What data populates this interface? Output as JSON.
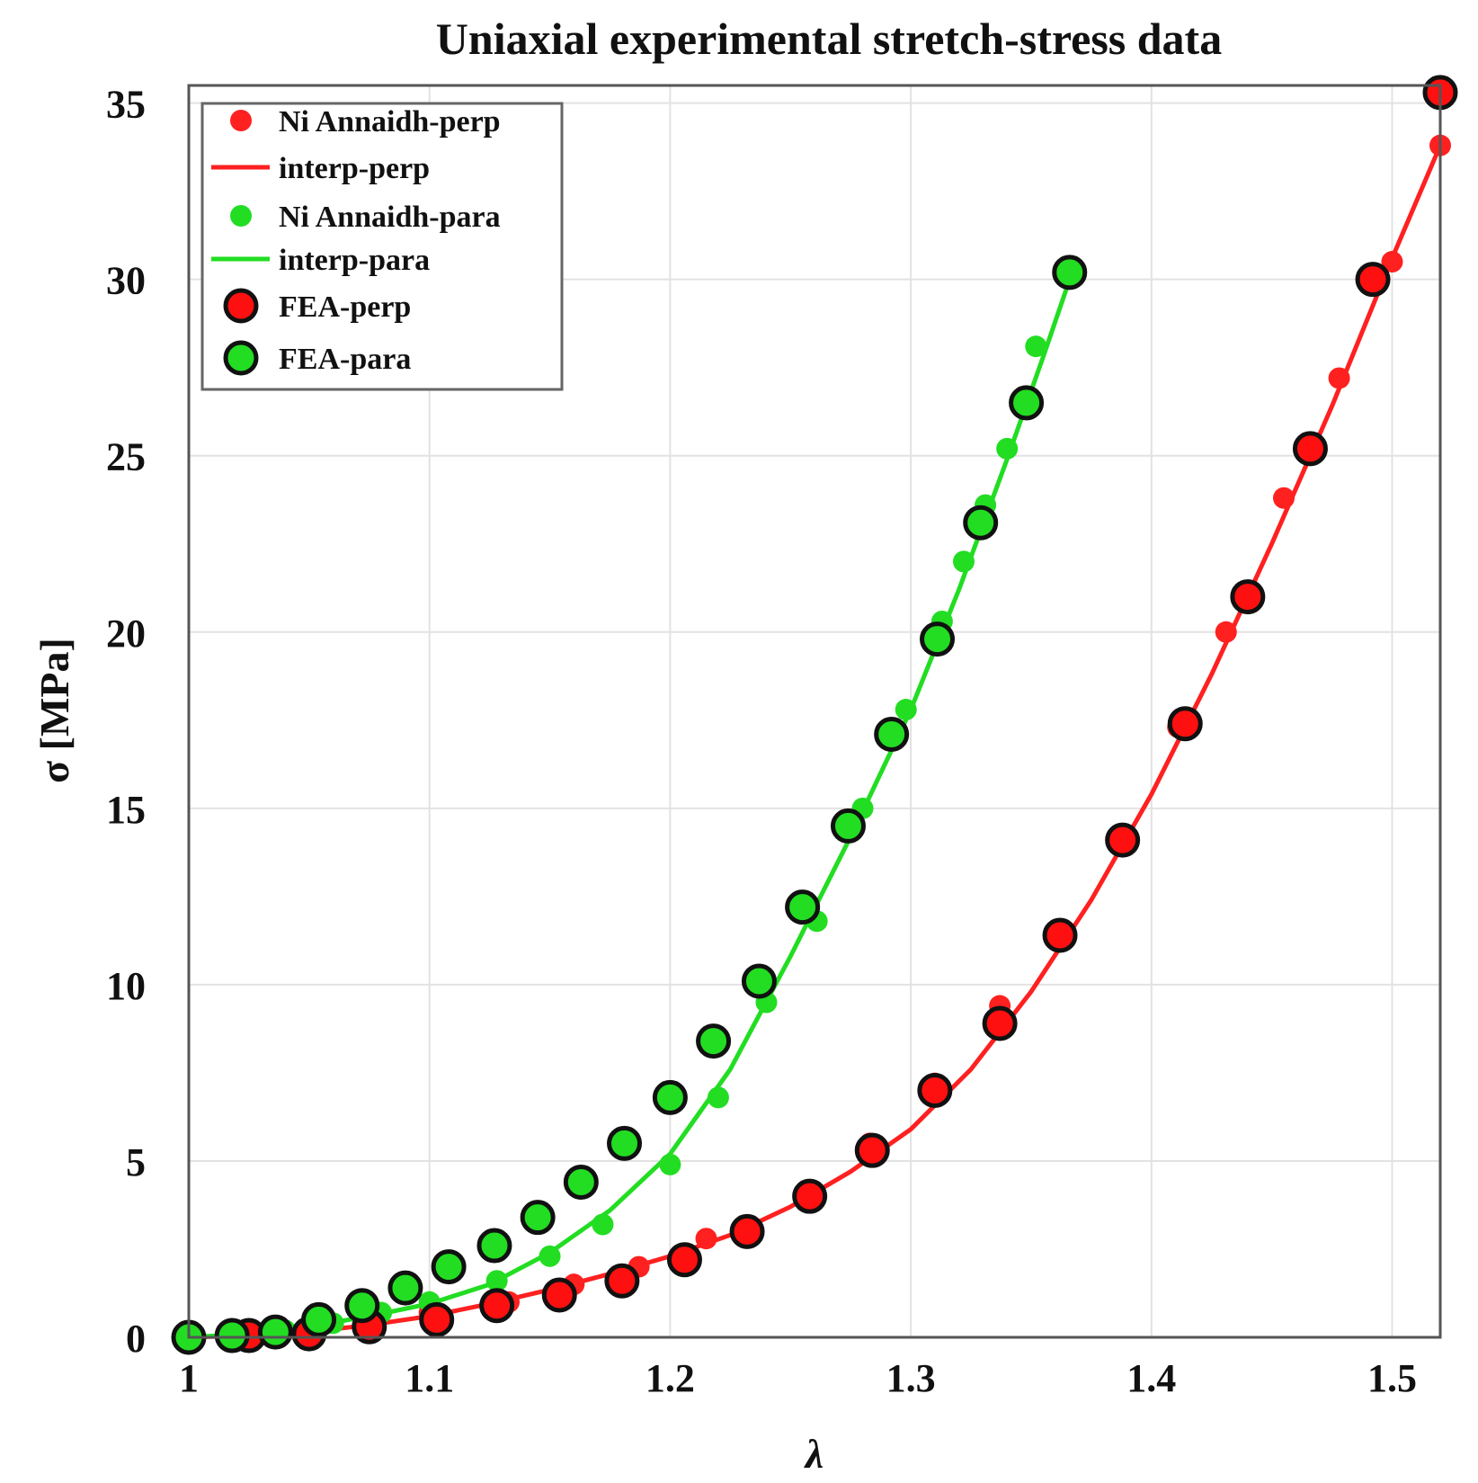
{
  "chart_data": {
    "type": "scatter",
    "title": "Uniaxial experimental stretch-stress data",
    "xlabel": "λ",
    "ylabel": "σ [MPa]",
    "xlim": [
      1.0,
      1.52
    ],
    "ylim": [
      0,
      35.5
    ],
    "xticks": [
      1,
      1.1,
      1.2,
      1.3,
      1.4,
      1.5
    ],
    "xtick_labels": [
      "1",
      "1.1",
      "1.2",
      "1.3",
      "1.4",
      "1.5"
    ],
    "yticks": [
      0,
      5,
      10,
      15,
      20,
      25,
      30,
      35
    ],
    "ytick_labels": [
      "0",
      "5",
      "10",
      "15",
      "20",
      "25",
      "30",
      "35"
    ],
    "grid": true,
    "legend_position": "top-left",
    "series": [
      {
        "name": "Ni Annaidh-perp",
        "kind": "points",
        "color": "#ff2020",
        "x": [
          1.0,
          1.025,
          1.05,
          1.075,
          1.1,
          1.133,
          1.16,
          1.187,
          1.215,
          1.258,
          1.283,
          1.31,
          1.337,
          1.364,
          1.386,
          1.411,
          1.431,
          1.455,
          1.478,
          1.5,
          1.52
        ],
        "y": [
          0,
          0.1,
          0.2,
          0.4,
          0.7,
          1.0,
          1.5,
          2.0,
          2.8,
          4.0,
          5.5,
          7.2,
          9.4,
          11.5,
          14.2,
          17.3,
          20.0,
          23.8,
          27.2,
          30.5,
          33.8
        ]
      },
      {
        "name": "interp-perp",
        "kind": "line",
        "color": "#ff2020",
        "x": [
          1.0,
          1.025,
          1.05,
          1.075,
          1.1,
          1.125,
          1.15,
          1.175,
          1.2,
          1.225,
          1.25,
          1.275,
          1.3,
          1.325,
          1.35,
          1.375,
          1.4,
          1.425,
          1.45,
          1.475,
          1.5,
          1.52
        ],
        "y": [
          0,
          0.05,
          0.15,
          0.35,
          0.6,
          0.95,
          1.35,
          1.8,
          2.3,
          2.9,
          3.7,
          4.7,
          5.9,
          7.6,
          9.8,
          12.4,
          15.4,
          18.8,
          22.5,
          26.4,
          30.6,
          33.8
        ]
      },
      {
        "name": "Ni Annaidh-para",
        "kind": "points",
        "color": "#22dd22",
        "x": [
          1.0,
          1.02,
          1.04,
          1.06,
          1.08,
          1.1,
          1.128,
          1.15,
          1.172,
          1.2,
          1.22,
          1.24,
          1.261,
          1.28,
          1.298,
          1.313,
          1.322,
          1.331,
          1.34,
          1.352,
          1.366
        ],
        "y": [
          0,
          0.1,
          0.2,
          0.4,
          0.7,
          1.0,
          1.6,
          2.3,
          3.2,
          4.9,
          6.8,
          9.5,
          11.8,
          15.0,
          17.8,
          20.3,
          22.0,
          23.6,
          25.2,
          28.1,
          30.3
        ]
      },
      {
        "name": "interp-para",
        "kind": "line",
        "color": "#22dd22",
        "x": [
          1.0,
          1.025,
          1.05,
          1.075,
          1.1,
          1.125,
          1.15,
          1.175,
          1.2,
          1.225,
          1.25,
          1.275,
          1.3,
          1.32,
          1.34,
          1.355,
          1.366
        ],
        "y": [
          0,
          0.1,
          0.3,
          0.6,
          0.95,
          1.5,
          2.4,
          3.6,
          5.2,
          7.6,
          10.8,
          14.2,
          17.8,
          21.2,
          24.9,
          27.8,
          30.0
        ]
      },
      {
        "name": "FEA-perp",
        "kind": "markers",
        "color": "#ff1010",
        "x": [
          1.025,
          1.05,
          1.075,
          1.103,
          1.128,
          1.154,
          1.18,
          1.206,
          1.232,
          1.258,
          1.284,
          1.31,
          1.337,
          1.362,
          1.388,
          1.414,
          1.44,
          1.466,
          1.492,
          1.52
        ],
        "y": [
          0.05,
          0.1,
          0.3,
          0.5,
          0.9,
          1.2,
          1.6,
          2.2,
          3.0,
          4.0,
          5.3,
          7.0,
          8.9,
          11.4,
          14.1,
          17.4,
          21.0,
          25.2,
          30.0,
          35.3
        ]
      },
      {
        "name": "FEA-para",
        "kind": "markers",
        "color": "#22dd22",
        "x": [
          1.0,
          1.018,
          1.036,
          1.054,
          1.072,
          1.09,
          1.108,
          1.127,
          1.145,
          1.163,
          1.181,
          1.2,
          1.218,
          1.237,
          1.255,
          1.274,
          1.292,
          1.311,
          1.329,
          1.348,
          1.366
        ],
        "y": [
          0,
          0.05,
          0.15,
          0.5,
          0.9,
          1.4,
          2.0,
          2.6,
          3.4,
          4.4,
          5.5,
          6.8,
          8.4,
          10.1,
          12.2,
          14.5,
          17.1,
          19.8,
          23.1,
          26.5,
          30.2
        ]
      }
    ]
  }
}
